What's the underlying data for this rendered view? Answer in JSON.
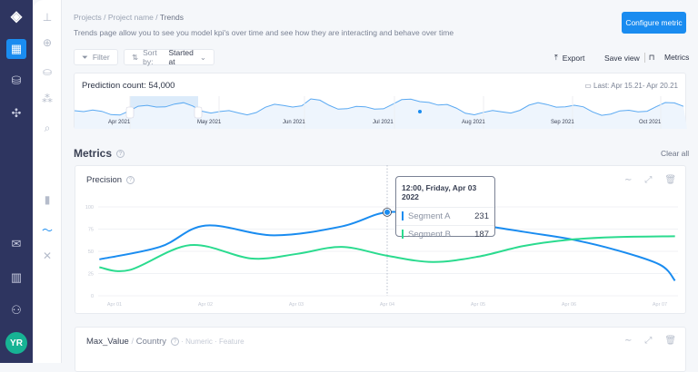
{
  "nav": {
    "avatar": "YR",
    "rail_icons": [
      "logo-icon",
      "dashboard-icon",
      "database-add-icon",
      "puzzle-icon",
      "chat-icon",
      "book-icon",
      "user-add-icon"
    ],
    "sub_icons": [
      "hierarchy-icon",
      "target-icon",
      "database-icon",
      "segments-icon",
      "search-chart-icon",
      "bar-chart-icon",
      "pulse-icon",
      "dna-icon"
    ]
  },
  "header": {
    "breadcrumb": [
      "Projects",
      "Project name",
      "Trends"
    ],
    "description": "Trends page allow you to see you model kpi's over time and see how they are interacting and behave over time",
    "configure": "Configure metric"
  },
  "toolbar": {
    "filter": "Filter",
    "sort_label": "Sort by:",
    "sort_value": "Started at",
    "export": "Export",
    "save_view": "Save view",
    "metrics": "Metrics"
  },
  "overview": {
    "title": "Prediction count: 54,000",
    "range": "Last: Apr 15.21- Apr 20.21",
    "months": [
      "Apr 2021",
      "May 2021",
      "Jun 2021",
      "Jul 2021",
      "Aug 2021",
      "Sep 2021",
      "Oct 2021"
    ]
  },
  "metrics": {
    "title": "Metrics",
    "clear_all": "Clear all",
    "precision": {
      "title": "Precision",
      "tooltip": {
        "title": "12:00, Friday, Apr 03 2022",
        "rows": [
          {
            "name": "Segment A",
            "value": "231"
          },
          {
            "name": "Segment B",
            "value": "187"
          }
        ]
      }
    },
    "second": {
      "title": "Max_Value",
      "sep": "/",
      "sub": "Country",
      "tags": [
        "Numeric",
        "Feature"
      ]
    }
  },
  "colors": {
    "accent": "#1a8cf0",
    "segment_a": "#1a8cf0",
    "segment_b": "#2bdb8f",
    "rail": "#2e3560"
  },
  "chart_data": {
    "type": "line",
    "xlabels": [
      "Apr 01",
      "Apr 02",
      "Apr 03",
      "Apr 04",
      "Apr 05",
      "Apr 06",
      "Apr 07"
    ],
    "yticks": [
      0,
      25,
      50,
      75,
      100
    ],
    "ylim": [
      0,
      100
    ],
    "grid": true,
    "series": [
      {
        "name": "Segment A",
        "color": "#1a8cf0",
        "points": [
          [
            "Mar 31 20:00",
            41
          ],
          [
            "Apr 01 12:00",
            55
          ],
          [
            "Apr 02 00:00",
            79
          ],
          [
            "Apr 02 18:00",
            68
          ],
          [
            "Apr 03 12:00",
            78
          ],
          [
            "Apr 04 00:00",
            94
          ],
          [
            "Apr 04 12:00",
            88
          ],
          [
            "Apr 05 12:00",
            72
          ],
          [
            "Apr 06 00:00",
            64
          ],
          [
            "Apr 06 12:00",
            52
          ],
          [
            "Apr 07 00:00",
            35
          ],
          [
            "Apr 07 04:00",
            17
          ]
        ]
      },
      {
        "name": "Segment B",
        "color": "#2bdb8f",
        "points": [
          [
            "Mar 31 20:00",
            32
          ],
          [
            "Apr 01 04:00",
            29
          ],
          [
            "Apr 01 20:00",
            57
          ],
          [
            "Apr 02 12:00",
            42
          ],
          [
            "Apr 03 00:00",
            47
          ],
          [
            "Apr 03 12:00",
            55
          ],
          [
            "Apr 04 00:00",
            45
          ],
          [
            "Apr 04 12:00",
            38
          ],
          [
            "Apr 05 00:00",
            44
          ],
          [
            "Apr 05 12:00",
            56
          ],
          [
            "Apr 06 00:00",
            63
          ],
          [
            "Apr 06 12:00",
            66
          ],
          [
            "Apr 07 04:00",
            67
          ]
        ]
      }
    ],
    "hover": "Apr 04 00:00"
  }
}
